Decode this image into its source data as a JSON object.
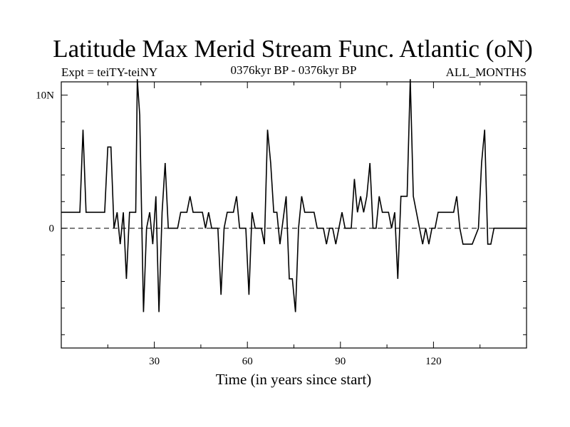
{
  "chart_data": {
    "type": "line",
    "title": "Latitude Max Merid Stream Func. Atlantic (oN)",
    "subtitle_left": "Expt = teiTY-teiNY",
    "subtitle_center": "0376kyr BP - 0376kyr BP",
    "subtitle_right": "ALL_MONTHS",
    "xlabel": "Time (in years since start)",
    "ylabel": "",
    "xlim": [
      0,
      150
    ],
    "ylim": [
      -9,
      11
    ],
    "x_ticks": [
      30,
      60,
      90,
      120
    ],
    "x_tick_labels": [
      "30",
      "60",
      "90",
      "120"
    ],
    "y_ticks": [
      0,
      10
    ],
    "y_tick_labels": [
      "0",
      "10N"
    ],
    "zero_line": "dashed",
    "series": [
      {
        "values": [
          [
            0,
            1.2
          ],
          [
            6,
            1.2
          ],
          [
            7,
            7.4
          ],
          [
            8,
            1.2
          ],
          [
            14,
            1.2
          ],
          [
            15,
            6.1
          ],
          [
            16,
            6.1
          ],
          [
            17,
            0.0
          ],
          [
            18,
            1.2
          ],
          [
            19,
            -1.2
          ],
          [
            20,
            1.2
          ],
          [
            21,
            -3.8
          ],
          [
            22,
            1.2
          ],
          [
            24,
            1.2
          ],
          [
            24.5,
            11.2
          ],
          [
            25.3,
            8.5
          ],
          [
            26.5,
            -6.3
          ],
          [
            27.5,
            0.0
          ],
          [
            28.5,
            1.2
          ],
          [
            29.5,
            -1.2
          ],
          [
            30.5,
            2.4
          ],
          [
            31.5,
            -6.3
          ],
          [
            32.5,
            1.2
          ],
          [
            33.5,
            4.9
          ],
          [
            34.5,
            0.0
          ],
          [
            37.5,
            0.0
          ],
          [
            38.5,
            1.2
          ],
          [
            40.5,
            1.2
          ],
          [
            41.5,
            2.4
          ],
          [
            42.5,
            1.2
          ],
          [
            45.5,
            1.2
          ],
          [
            46.5,
            0.0
          ],
          [
            47.5,
            1.2
          ],
          [
            48.5,
            0.0
          ],
          [
            50.5,
            0.0
          ],
          [
            51.5,
            -5.0
          ],
          [
            52.5,
            0.0
          ],
          [
            53.5,
            1.2
          ],
          [
            55.5,
            1.2
          ],
          [
            56.5,
            2.4
          ],
          [
            57.5,
            0.0
          ],
          [
            59.5,
            0.0
          ],
          [
            60.5,
            -5.0
          ],
          [
            61.5,
            1.2
          ],
          [
            62.5,
            0.0
          ],
          [
            64.5,
            0.0
          ],
          [
            65.5,
            -1.2
          ],
          [
            66.5,
            7.4
          ],
          [
            67.5,
            4.9
          ],
          [
            68.5,
            1.2
          ],
          [
            69.5,
            1.2
          ],
          [
            70.5,
            -1.2
          ],
          [
            72.5,
            2.4
          ],
          [
            73.5,
            -3.8
          ],
          [
            74.5,
            -3.8
          ],
          [
            75.5,
            -6.3
          ],
          [
            76.5,
            0.0
          ],
          [
            77.5,
            2.4
          ],
          [
            78.5,
            1.2
          ],
          [
            81.5,
            1.2
          ],
          [
            82.5,
            0.0
          ],
          [
            84.5,
            0.0
          ],
          [
            85.5,
            -1.2
          ],
          [
            86.5,
            0.0
          ],
          [
            87.5,
            0.0
          ],
          [
            88.5,
            -1.2
          ],
          [
            89.5,
            0.0
          ],
          [
            90.5,
            1.2
          ],
          [
            91.5,
            0.0
          ],
          [
            93.5,
            0.0
          ],
          [
            94.5,
            3.7
          ],
          [
            95.5,
            1.2
          ],
          [
            96.5,
            2.4
          ],
          [
            97.5,
            1.2
          ],
          [
            98.5,
            2.4
          ],
          [
            99.5,
            4.9
          ],
          [
            100.5,
            0.0
          ],
          [
            101.5,
            0.0
          ],
          [
            102.5,
            2.4
          ],
          [
            103.5,
            1.2
          ],
          [
            105.5,
            1.2
          ],
          [
            106.5,
            0.0
          ],
          [
            107.5,
            1.2
          ],
          [
            108.5,
            -3.8
          ],
          [
            109.5,
            2.4
          ],
          [
            111.5,
            2.4
          ],
          [
            112.5,
            11.2
          ],
          [
            113.5,
            2.4
          ],
          [
            115.5,
            0.0
          ],
          [
            116.5,
            -1.2
          ],
          [
            117.5,
            0.0
          ],
          [
            118.5,
            -1.2
          ],
          [
            119.5,
            0.0
          ],
          [
            120.5,
            0.0
          ],
          [
            121.5,
            1.2
          ],
          [
            126.5,
            1.2
          ],
          [
            127.5,
            2.4
          ],
          [
            128.5,
            0.0
          ],
          [
            129.5,
            -1.2
          ],
          [
            132.5,
            -1.2
          ],
          [
            134.5,
            0.0
          ],
          [
            135.5,
            4.9
          ],
          [
            136.5,
            7.4
          ],
          [
            137.5,
            -1.2
          ],
          [
            138.5,
            -1.2
          ],
          [
            139.5,
            0.0
          ],
          [
            150,
            0.0
          ]
        ]
      }
    ]
  }
}
